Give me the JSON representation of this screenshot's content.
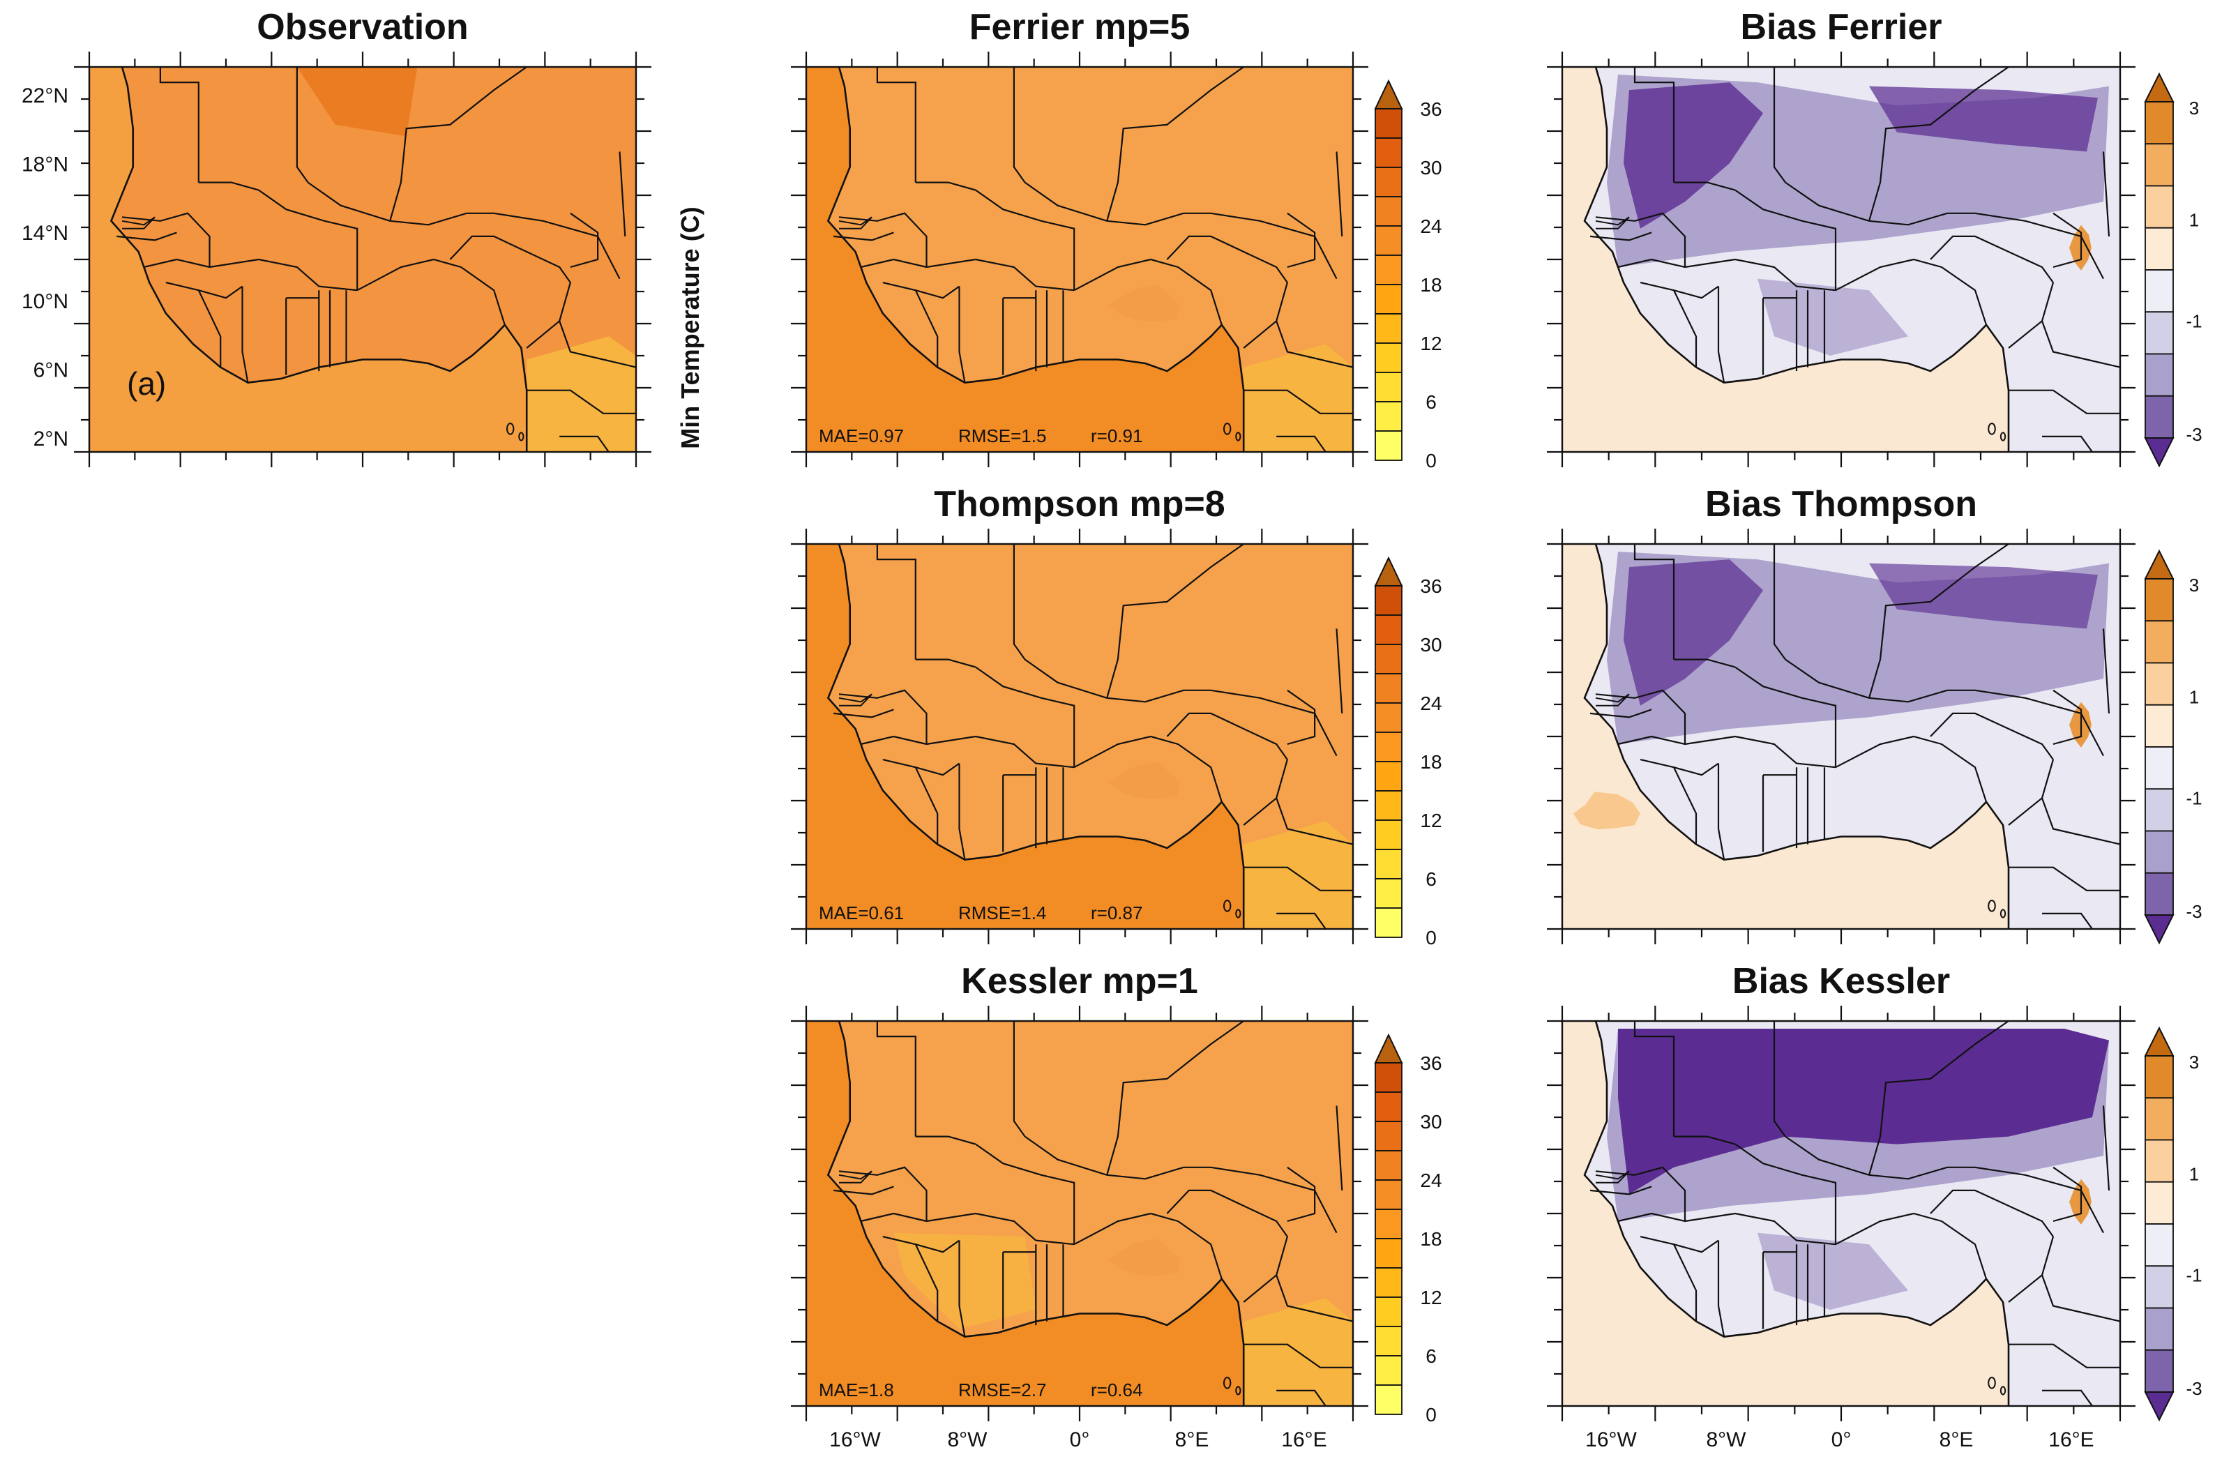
{
  "figure": {
    "y_axis_label": "Min Temperature (C)",
    "lat_ticks": [
      "22°N",
      "18°N",
      "14°N",
      "10°N",
      "6°N",
      "2°N"
    ],
    "lon_ticks": [
      "16°W",
      "8°W",
      "0°",
      "8°E",
      "16°E"
    ],
    "temp_colorbar": {
      "labels": [
        "36",
        "30",
        "24",
        "18",
        "12",
        "6",
        "0"
      ],
      "colors": [
        "#ffff66",
        "#ffee44",
        "#ffdd33",
        "#ffcc22",
        "#ffb818",
        "#ffa612",
        "#fa9820",
        "#f58e24",
        "#f08222",
        "#ea7018",
        "#e35f10",
        "#d05008",
        "#b8620f"
      ]
    },
    "bias_colorbar": {
      "labels": [
        "3",
        "1",
        "-1",
        "-3"
      ],
      "colors": [
        "#5b2c91",
        "#7e64aa",
        "#aaa0cc",
        "#d2d0e6",
        "#eeeef6",
        "#fdebd6",
        "#fbd09e",
        "#f3ad5f",
        "#e08a2c",
        "#c46a12"
      ]
    },
    "land_colors": {
      "obs": "#f39440",
      "model_light": "#f6a24c",
      "model_yellow": "#f8b440",
      "ocean": "#f28c24",
      "bias_ocean": "#fbe8d2",
      "bias_land": "#e9e8f3",
      "bias_cold": "#a69bc9",
      "bias_very_cold": "#5b2c91"
    },
    "panels": [
      {
        "id": "observation",
        "title": "Observation",
        "label": "(a)",
        "kind": "obs"
      },
      {
        "id": "ferrier",
        "title": "Ferrier mp=5",
        "kind": "model",
        "mae": "MAE=0.97",
        "rmse": "RMSE=1.5",
        "r": "r=0.91"
      },
      {
        "id": "bias-ferrier",
        "title": "Bias Ferrier",
        "kind": "bias"
      },
      {
        "id": "thompson",
        "title": "Thompson mp=8",
        "kind": "model",
        "mae": "MAE=0.61",
        "rmse": "RMSE=1.4",
        "r": "r=0.87"
      },
      {
        "id": "bias-thompson",
        "title": "Bias Thompson",
        "kind": "bias"
      },
      {
        "id": "kessler",
        "title": "Kessler mp=1",
        "kind": "model",
        "mae": "MAE=1.8",
        "rmse": "RMSE=2.7",
        "r": "r=0.64"
      },
      {
        "id": "bias-kessler",
        "title": "Bias Kessler",
        "kind": "bias"
      }
    ]
  }
}
